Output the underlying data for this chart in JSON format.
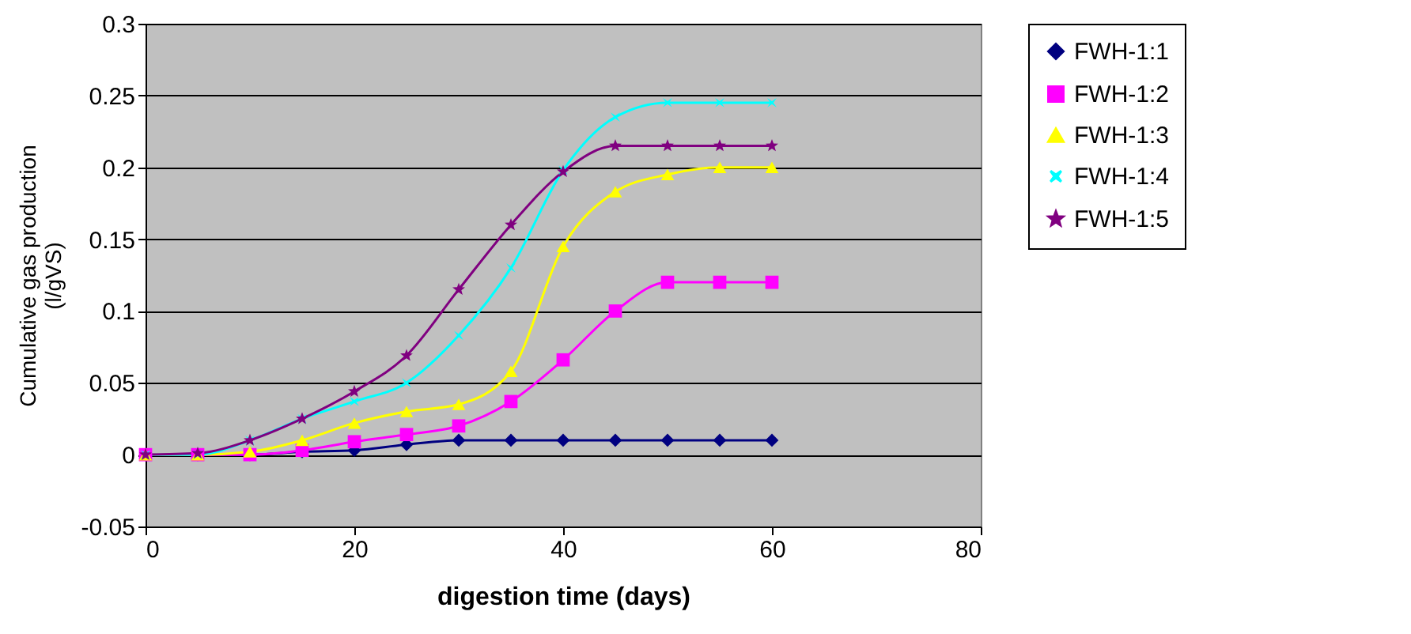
{
  "chart_data": {
    "type": "line",
    "xlabel": "digestion time (days)",
    "ylabel": "Cumulative gas production\n(l/gVS)",
    "x": [
      0,
      5,
      10,
      15,
      20,
      25,
      30,
      35,
      40,
      45,
      50,
      55,
      60
    ],
    "xlim": [
      0,
      80
    ],
    "xticks": [
      0,
      20,
      40,
      60,
      80
    ],
    "ylim": [
      -0.05,
      0.3
    ],
    "yticks": [
      -0.05,
      0,
      0.05,
      0.1,
      0.15,
      0.2,
      0.25,
      0.3
    ],
    "grid": "y",
    "legend": "right",
    "series": [
      {
        "name": "FWH-1:1",
        "color": "#000080",
        "marker": "diamond",
        "values": [
          0,
          0,
          0,
          0.002,
          0.003,
          0.007,
          0.01,
          0.01,
          0.01,
          0.01,
          0.01,
          0.01,
          0.01
        ]
      },
      {
        "name": "FWH-1:2",
        "color": "#ff00ff",
        "marker": "square",
        "values": [
          0,
          0,
          0,
          0.003,
          0.009,
          0.014,
          0.02,
          0.037,
          0.066,
          0.1,
          0.12,
          0.12,
          0.12
        ]
      },
      {
        "name": "FWH-1:3",
        "color": "#ffff00",
        "marker": "triangle",
        "values": [
          0,
          0,
          0.002,
          0.01,
          0.022,
          0.03,
          0.035,
          0.058,
          0.145,
          0.183,
          0.195,
          0.2,
          0.2
        ]
      },
      {
        "name": "FWH-1:4",
        "color": "#00ffff",
        "marker": "cross",
        "values": [
          0,
          0,
          0.01,
          0.025,
          0.037,
          0.05,
          0.083,
          0.13,
          0.198,
          0.235,
          0.245,
          0.245,
          0.245
        ]
      },
      {
        "name": "FWH-1:5",
        "color": "#800080",
        "marker": "star",
        "values": [
          0,
          0.001,
          0.01,
          0.025,
          0.044,
          0.069,
          0.115,
          0.16,
          0.197,
          0.215,
          0.215,
          0.215,
          0.215
        ]
      }
    ]
  }
}
